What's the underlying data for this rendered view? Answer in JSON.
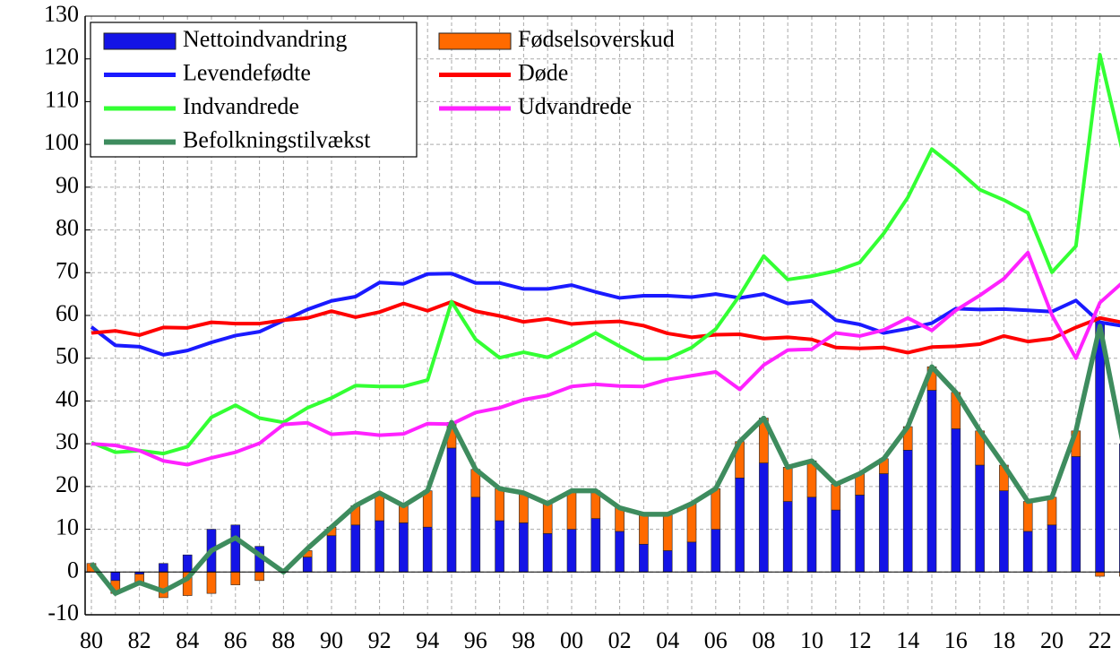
{
  "chart_data": {
    "type": "combo",
    "categories": [
      "80",
      null,
      "82",
      null,
      "84",
      null,
      "86",
      null,
      "88",
      null,
      "90",
      null,
      "92",
      null,
      "94",
      null,
      "96",
      null,
      "98",
      null,
      "00",
      null,
      "02",
      null,
      "04",
      null,
      "06",
      null,
      "08",
      null,
      "10",
      null,
      "12",
      null,
      "14",
      null,
      "16",
      null,
      "18",
      null,
      "20",
      null,
      "22",
      null
    ],
    "series": [
      {
        "name": "Nettoindvandring",
        "type": "bar",
        "color": "#1414e6",
        "values": [
          0,
          -2,
          -0.5,
          2,
          4,
          10,
          11,
          6,
          0.5,
          3.5,
          8.5,
          11,
          12,
          11.5,
          10.5,
          29,
          17.5,
          12,
          11.5,
          9,
          10,
          12.5,
          9.5,
          6.5,
          5,
          7,
          10,
          22,
          25.5,
          16.5,
          17.5,
          14.5,
          18,
          23,
          28.5,
          42.5,
          33.5,
          25,
          19,
          9.5,
          11,
          27,
          58.5,
          30
        ]
      },
      {
        "name": "Fødselsoverskud",
        "type": "bar",
        "color": "#ff6a00",
        "values": [
          2,
          -3,
          -2.5,
          -6,
          -5.5,
          -5,
          -3,
          -2,
          0,
          1.5,
          2,
          4.5,
          6,
          4,
          8.5,
          6,
          6.5,
          7.5,
          7,
          7,
          9,
          6.5,
          5.5,
          7,
          8.5,
          9,
          9.5,
          8.5,
          10.5,
          8,
          8.5,
          6,
          5,
          3.5,
          5.5,
          5.5,
          8.5,
          8,
          6,
          7,
          6.5,
          6,
          -1,
          -1
        ]
      },
      {
        "name": "Levendefødte",
        "type": "line",
        "color": "#1a1aff",
        "values": [
          57.3,
          53,
          52.7,
          50.8,
          51.8,
          53.7,
          55.3,
          56.2,
          58.8,
          61.4,
          63.4,
          64.4,
          67.7,
          67.4,
          69.7,
          69.8,
          67.6,
          67.6,
          66.2,
          66.2,
          67.1,
          65.5,
          64.1,
          64.6,
          64.6,
          64.3,
          65,
          64.1,
          65,
          62.8,
          63.4,
          58.9,
          57.9,
          55.9,
          56.9,
          58.2,
          61.6,
          61.4,
          61.5,
          61.2,
          60.9,
          63.5,
          58.4,
          57.5
        ]
      },
      {
        "name": "Døde",
        "type": "line",
        "color": "#ff0000",
        "values": [
          55.9,
          56.4,
          55.4,
          57.2,
          57.1,
          58.4,
          58.1,
          58.1,
          58.9,
          59.4,
          61,
          59.6,
          60.8,
          62.8,
          61.1,
          63.2,
          61,
          59.9,
          58.5,
          59.2,
          58,
          58.4,
          58.6,
          57.6,
          55.8,
          54.9,
          55.5,
          55.6,
          54.6,
          54.9,
          54.4,
          52.5,
          52.3,
          52.5,
          51.3,
          52.6,
          52.8,
          53.3,
          55.2,
          53.9,
          54.6,
          57.2,
          59.4,
          58.3
        ]
      },
      {
        "name": "Indvandrede",
        "type": "line",
        "color": "#33ff33",
        "values": [
          30.3,
          28,
          28.4,
          27.7,
          29.3,
          36.2,
          39,
          36,
          35,
          38.4,
          40.7,
          43.6,
          43.4,
          43.4,
          44.9,
          63.2,
          54.4,
          50.1,
          51.4,
          50.2,
          52.9,
          55.9,
          52.8,
          49.8,
          49.9,
          52.5,
          56.8,
          64.7,
          73.9,
          68.4,
          69.2,
          70.4,
          72.4,
          79.2,
          87.6,
          98.9,
          94.4,
          89.4,
          87,
          84,
          70.1,
          76.2,
          121,
          97
        ]
      },
      {
        "name": "Udvandrede",
        "type": "line",
        "color": "#ff22ff",
        "values": [
          30,
          29.6,
          28.4,
          26,
          25.1,
          26.7,
          28,
          30.1,
          34.5,
          34.9,
          32.2,
          32.6,
          32,
          32.3,
          34.7,
          34.6,
          37.3,
          38.4,
          40.3,
          41.3,
          43.4,
          43.9,
          43.5,
          43.4,
          45,
          45.9,
          46.8,
          42.7,
          48.4,
          51.9,
          52.1,
          55.9,
          55.2,
          56.6,
          59.4,
          56.5,
          61.2,
          64.7,
          68.6,
          74.7,
          60.1,
          50,
          63,
          68
        ]
      },
      {
        "name": "Befolkningstilvækst",
        "type": "line",
        "color": "#3e8c5e",
        "values": [
          2,
          -5,
          -2.5,
          -4.5,
          -1.5,
          5,
          8,
          4,
          0,
          5.5,
          10.5,
          15.5,
          18.5,
          15.5,
          19,
          35,
          24,
          19.5,
          18.5,
          16,
          19,
          19,
          15,
          13.5,
          13.5,
          16,
          19.5,
          30.5,
          36,
          24.5,
          26,
          20.5,
          23,
          26.5,
          34,
          48,
          42,
          33,
          25,
          16.5,
          17.5,
          33,
          57.5,
          29
        ]
      }
    ],
    "ylim": [
      -10,
      130
    ],
    "yticks": [
      -10,
      0,
      10,
      20,
      30,
      40,
      50,
      60,
      70,
      80,
      90,
      100,
      110,
      120,
      130
    ],
    "grid": true,
    "legend": "upper left"
  }
}
